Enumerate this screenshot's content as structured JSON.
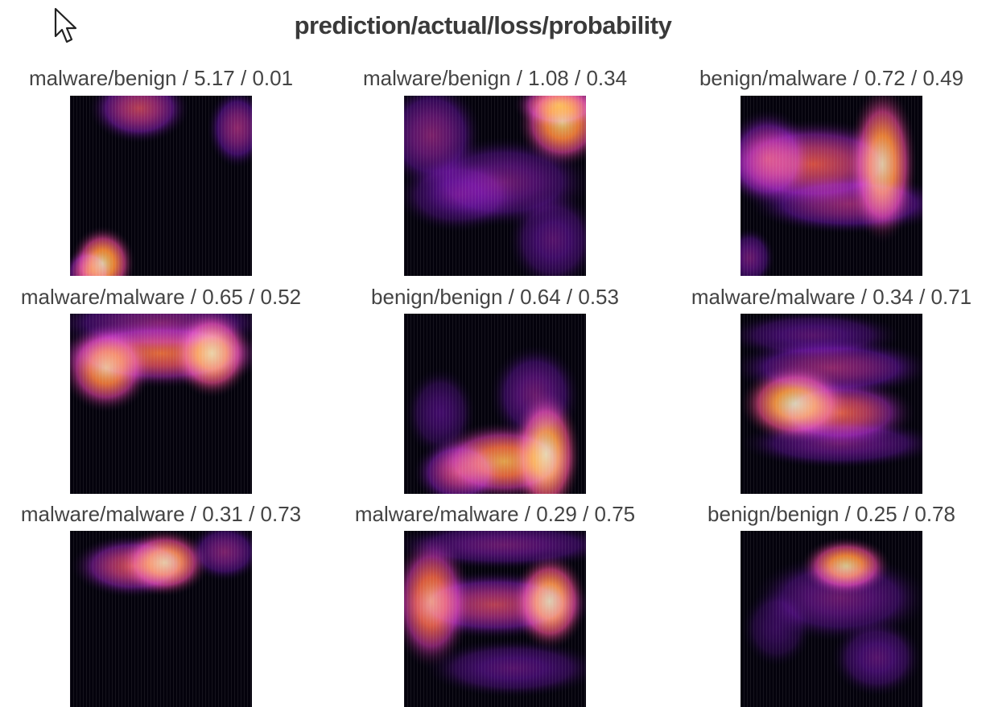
{
  "figure": {
    "title": "prediction/actual/loss/probability"
  },
  "chart_data": [
    {
      "type": "heatmap",
      "title": "malware/benign / 5.17 / 0.01",
      "colormap": "inferno",
      "hotspots": [
        {
          "cx": 0.38,
          "cy": 0.07,
          "rx": 0.2,
          "ry": 0.14,
          "v": 0.55
        },
        {
          "cx": 0.92,
          "cy": 0.18,
          "rx": 0.12,
          "ry": 0.16,
          "v": 0.45
        },
        {
          "cx": 0.18,
          "cy": 0.93,
          "rx": 0.13,
          "ry": 0.15,
          "v": 0.95
        },
        {
          "cx": 0.1,
          "cy": 0.98,
          "rx": 0.1,
          "ry": 0.1,
          "v": 0.6
        }
      ]
    },
    {
      "type": "heatmap",
      "title": "malware/benign / 1.08 / 0.34",
      "colormap": "inferno",
      "hotspots": [
        {
          "cx": 0.87,
          "cy": 0.15,
          "rx": 0.18,
          "ry": 0.18,
          "v": 0.92
        },
        {
          "cx": 0.85,
          "cy": 0.05,
          "rx": 0.18,
          "ry": 0.1,
          "v": 0.8
        },
        {
          "cx": 0.15,
          "cy": 0.22,
          "rx": 0.2,
          "ry": 0.22,
          "v": 0.4
        },
        {
          "cx": 0.55,
          "cy": 0.48,
          "rx": 0.35,
          "ry": 0.18,
          "v": 0.35
        },
        {
          "cx": 0.3,
          "cy": 0.55,
          "rx": 0.25,
          "ry": 0.15,
          "v": 0.3
        },
        {
          "cx": 0.82,
          "cy": 0.8,
          "rx": 0.18,
          "ry": 0.2,
          "v": 0.3
        }
      ]
    },
    {
      "type": "heatmap",
      "title": "benign/malware / 0.72 / 0.49",
      "colormap": "inferno",
      "hotspots": [
        {
          "cx": 0.78,
          "cy": 0.38,
          "rx": 0.14,
          "ry": 0.32,
          "v": 0.95
        },
        {
          "cx": 0.4,
          "cy": 0.38,
          "rx": 0.4,
          "ry": 0.18,
          "v": 0.62
        },
        {
          "cx": 0.15,
          "cy": 0.35,
          "rx": 0.18,
          "ry": 0.2,
          "v": 0.55
        },
        {
          "cx": 0.6,
          "cy": 0.6,
          "rx": 0.4,
          "ry": 0.12,
          "v": 0.45
        },
        {
          "cx": 0.05,
          "cy": 0.9,
          "rx": 0.1,
          "ry": 0.12,
          "v": 0.35
        }
      ]
    },
    {
      "type": "heatmap",
      "title": "malware/malware / 0.65 / 0.52",
      "colormap": "inferno",
      "hotspots": [
        {
          "cx": 0.2,
          "cy": 0.3,
          "rx": 0.18,
          "ry": 0.18,
          "v": 0.9
        },
        {
          "cx": 0.78,
          "cy": 0.22,
          "rx": 0.16,
          "ry": 0.18,
          "v": 0.98
        },
        {
          "cx": 0.5,
          "cy": 0.22,
          "rx": 0.45,
          "ry": 0.14,
          "v": 0.7
        },
        {
          "cx": 0.5,
          "cy": 0.05,
          "rx": 0.45,
          "ry": 0.12,
          "v": 0.4
        }
      ]
    },
    {
      "type": "heatmap",
      "title": "benign/benign / 0.64 / 0.53",
      "colormap": "inferno",
      "hotspots": [
        {
          "cx": 0.78,
          "cy": 0.78,
          "rx": 0.14,
          "ry": 0.26,
          "v": 1.0
        },
        {
          "cx": 0.55,
          "cy": 0.82,
          "rx": 0.3,
          "ry": 0.16,
          "v": 0.85
        },
        {
          "cx": 0.3,
          "cy": 0.88,
          "rx": 0.18,
          "ry": 0.14,
          "v": 0.55
        },
        {
          "cx": 0.72,
          "cy": 0.45,
          "rx": 0.18,
          "ry": 0.2,
          "v": 0.35
        },
        {
          "cx": 0.2,
          "cy": 0.55,
          "rx": 0.14,
          "ry": 0.18,
          "v": 0.25
        }
      ]
    },
    {
      "type": "heatmap",
      "title": "malware/malware / 0.34 / 0.71",
      "colormap": "inferno",
      "hotspots": [
        {
          "cx": 0.3,
          "cy": 0.5,
          "rx": 0.22,
          "ry": 0.16,
          "v": 1.0
        },
        {
          "cx": 0.55,
          "cy": 0.55,
          "rx": 0.3,
          "ry": 0.14,
          "v": 0.65
        },
        {
          "cx": 0.5,
          "cy": 0.3,
          "rx": 0.4,
          "ry": 0.12,
          "v": 0.45
        },
        {
          "cx": 0.4,
          "cy": 0.12,
          "rx": 0.35,
          "ry": 0.1,
          "v": 0.3
        },
        {
          "cx": 0.55,
          "cy": 0.72,
          "rx": 0.4,
          "ry": 0.1,
          "v": 0.35
        }
      ]
    },
    {
      "type": "heatmap",
      "title": "malware/malware / 0.31 / 0.73",
      "colormap": "inferno",
      "hotspots": [
        {
          "cx": 0.52,
          "cy": 0.18,
          "rx": 0.18,
          "ry": 0.14,
          "v": 0.95
        },
        {
          "cx": 0.35,
          "cy": 0.2,
          "rx": 0.25,
          "ry": 0.13,
          "v": 0.6
        },
        {
          "cx": 0.85,
          "cy": 0.12,
          "rx": 0.15,
          "ry": 0.12,
          "v": 0.4
        }
      ]
    },
    {
      "type": "heatmap",
      "title": "malware/malware / 0.29 / 0.75",
      "colormap": "inferno",
      "hotspots": [
        {
          "cx": 0.15,
          "cy": 0.4,
          "rx": 0.16,
          "ry": 0.28,
          "v": 0.82
        },
        {
          "cx": 0.8,
          "cy": 0.4,
          "rx": 0.15,
          "ry": 0.2,
          "v": 0.98
        },
        {
          "cx": 0.5,
          "cy": 0.42,
          "rx": 0.4,
          "ry": 0.14,
          "v": 0.55
        },
        {
          "cx": 0.55,
          "cy": 0.08,
          "rx": 0.45,
          "ry": 0.1,
          "v": 0.35
        },
        {
          "cx": 0.6,
          "cy": 0.78,
          "rx": 0.35,
          "ry": 0.12,
          "v": 0.3
        }
      ]
    },
    {
      "type": "heatmap",
      "title": "benign/benign / 0.25 / 0.78",
      "colormap": "inferno",
      "hotspots": [
        {
          "cx": 0.58,
          "cy": 0.2,
          "rx": 0.18,
          "ry": 0.12,
          "v": 0.95
        },
        {
          "cx": 0.55,
          "cy": 0.38,
          "rx": 0.35,
          "ry": 0.18,
          "v": 0.35
        },
        {
          "cx": 0.75,
          "cy": 0.72,
          "rx": 0.18,
          "ry": 0.16,
          "v": 0.3
        },
        {
          "cx": 0.2,
          "cy": 0.55,
          "rx": 0.14,
          "ry": 0.16,
          "v": 0.2
        }
      ]
    }
  ]
}
